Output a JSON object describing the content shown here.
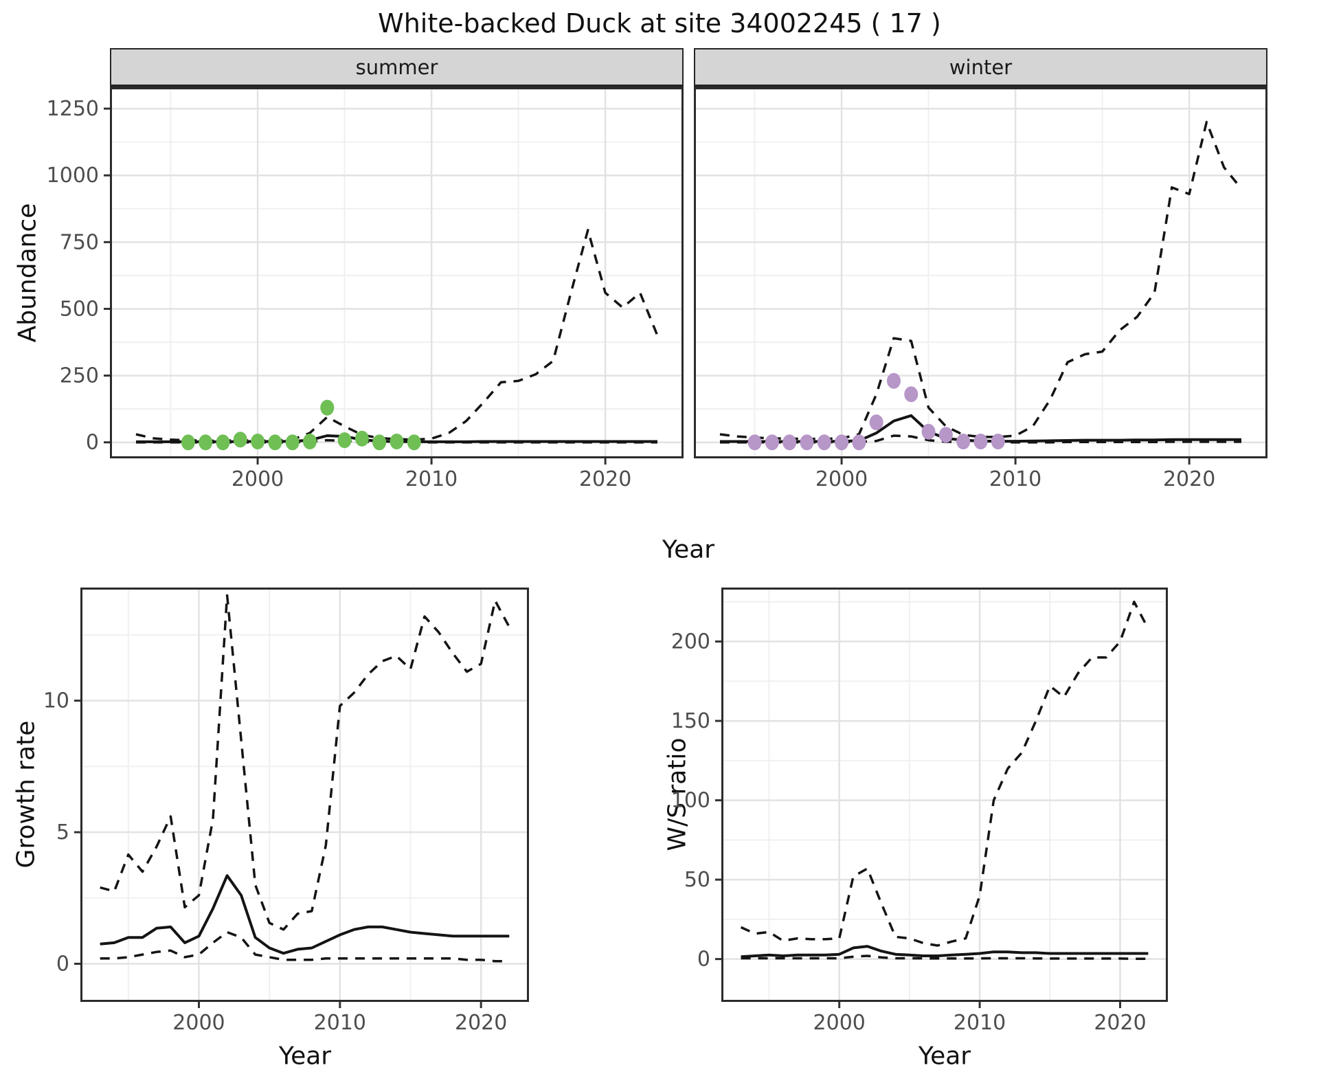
{
  "title": "White-backed Duck at site 34002245 ( 17 )",
  "facets": {
    "summer": "summer",
    "winter": "winter"
  },
  "axis_titles": {
    "abundance": "Abundance",
    "year_top": "Year",
    "growth_rate": "Growth rate",
    "year_bottom_left": "Year",
    "ws_ratio": "W/S ratio",
    "year_bottom_right": "Year"
  },
  "colors": {
    "summer_point": "#6FBF55",
    "winter_point": "#B796C8",
    "line": "#141414",
    "grid_major": "#E2E2E2",
    "grid_minor": "#F0F0F0",
    "panel_border": "#2B2B2B",
    "tick_mark": "#333333",
    "tick_label": "#4D4D4D",
    "strip_bg": "#D5D5D5",
    "text": "#111111"
  },
  "chart_data": [
    {
      "id": "abundance_summer",
      "type": "line",
      "facet": "summer",
      "xlabel": "Year",
      "ylabel": "Abundance",
      "x": [
        1993,
        1994,
        1995,
        1996,
        1997,
        1998,
        1999,
        2000,
        2001,
        2002,
        2003,
        2004,
        2005,
        2006,
        2007,
        2008,
        2009,
        2010,
        2011,
        2012,
        2013,
        2014,
        2015,
        2016,
        2017,
        2018,
        2019,
        2020,
        2021,
        2022,
        2023
      ],
      "series": [
        {
          "name": "dashed_lower",
          "style": "dashed",
          "values": [
            0,
            0,
            0,
            0,
            0,
            0,
            0,
            0,
            0,
            0,
            2,
            8,
            5,
            2,
            1,
            0,
            0,
            0,
            0,
            0,
            0,
            0,
            0,
            0,
            0,
            0,
            0,
            0,
            0,
            0,
            0
          ]
        },
        {
          "name": "dashed_upper",
          "style": "dashed",
          "values": [
            30,
            15,
            10,
            8,
            6,
            6,
            8,
            6,
            7,
            10,
            35,
            95,
            60,
            28,
            16,
            12,
            10,
            14,
            35,
            80,
            150,
            225,
            230,
            255,
            305,
            555,
            795,
            560,
            505,
            560,
            400
          ]
        },
        {
          "name": "solid_mean",
          "style": "solid",
          "values": [
            2,
            2,
            2,
            2,
            2,
            2,
            3,
            3,
            3,
            4,
            8,
            25,
            22,
            10,
            4,
            3,
            2,
            2,
            2,
            2,
            3,
            3,
            3,
            3,
            3,
            3,
            3,
            3,
            3,
            3,
            3
          ]
        }
      ],
      "points": {
        "name": "observed_counts_summer",
        "color_key": "summer_point",
        "data": [
          [
            1996,
            0
          ],
          [
            1997,
            0
          ],
          [
            1998,
            0
          ],
          [
            1999,
            10
          ],
          [
            2000,
            3
          ],
          [
            2001,
            0
          ],
          [
            2002,
            0
          ],
          [
            2003,
            3
          ],
          [
            2004,
            130
          ],
          [
            2005,
            8
          ],
          [
            2006,
            14
          ],
          [
            2007,
            0
          ],
          [
            2008,
            3
          ],
          [
            2009,
            0
          ]
        ]
      },
      "xlim": [
        1991.5,
        2024.5
      ],
      "ylim": [
        -60,
        1330
      ],
      "xticks": {
        "major": [
          2000,
          2010,
          2020
        ],
        "minor": [
          1995,
          2005,
          2015
        ],
        "labels": [
          "2000",
          "2010",
          "2020"
        ]
      },
      "yticks": {
        "major": [
          0,
          250,
          500,
          750,
          1000,
          1250
        ],
        "minor": [
          125,
          375,
          625,
          875,
          1125
        ],
        "labels": [
          "0",
          "250",
          "500",
          "750",
          "1000",
          "1250"
        ]
      },
      "y_axis": true
    },
    {
      "id": "abundance_winter",
      "type": "line",
      "facet": "winter",
      "xlabel": "Year",
      "ylabel": "Abundance",
      "x": [
        1993,
        1994,
        1995,
        1996,
        1997,
        1998,
        1999,
        2000,
        2001,
        2002,
        2003,
        2004,
        2005,
        2006,
        2007,
        2008,
        2009,
        2010,
        2011,
        2012,
        2013,
        2014,
        2015,
        2016,
        2017,
        2018,
        2019,
        2020,
        2021,
        2022,
        2023
      ],
      "series": [
        {
          "name": "dashed_lower",
          "style": "dashed",
          "values": [
            0,
            0,
            0,
            0,
            0,
            0,
            0,
            1,
            2,
            5,
            25,
            22,
            8,
            2,
            1,
            0,
            0,
            0,
            0,
            0,
            1,
            1,
            1,
            1,
            1,
            1,
            2,
            2,
            2,
            2,
            2
          ]
        },
        {
          "name": "dashed_upper",
          "style": "dashed",
          "values": [
            30,
            22,
            18,
            15,
            14,
            13,
            13,
            15,
            30,
            180,
            390,
            380,
            130,
            60,
            28,
            20,
            20,
            25,
            60,
            160,
            300,
            330,
            340,
            420,
            470,
            560,
            955,
            930,
            1200,
            1030,
            950
          ]
        },
        {
          "name": "solid_mean",
          "style": "solid",
          "values": [
            3,
            3,
            3,
            3,
            3,
            3,
            3,
            4,
            6,
            35,
            80,
            100,
            40,
            15,
            8,
            5,
            4,
            4,
            5,
            6,
            7,
            8,
            8,
            8,
            9,
            9,
            10,
            10,
            10,
            10,
            10
          ]
        }
      ],
      "points": {
        "name": "observed_counts_winter",
        "color_key": "winter_point",
        "data": [
          [
            1995,
            0
          ],
          [
            1996,
            0
          ],
          [
            1997,
            0
          ],
          [
            1998,
            0
          ],
          [
            1999,
            0
          ],
          [
            2000,
            0
          ],
          [
            2001,
            0
          ],
          [
            2002,
            75
          ],
          [
            2003,
            230
          ],
          [
            2004,
            180
          ],
          [
            2005,
            40
          ],
          [
            2006,
            28
          ],
          [
            2007,
            3
          ],
          [
            2008,
            3
          ],
          [
            2009,
            3
          ]
        ]
      },
      "xlim": [
        1991.5,
        2024.5
      ],
      "ylim": [
        -60,
        1330
      ],
      "xticks": {
        "major": [
          2000,
          2010,
          2020
        ],
        "minor": [
          1995,
          2005,
          2015
        ],
        "labels": [
          "2000",
          "2010",
          "2020"
        ]
      },
      "yticks": {
        "major": [
          0,
          250,
          500,
          750,
          1000,
          1250
        ],
        "minor": [
          125,
          375,
          625,
          875,
          1125
        ],
        "labels": [
          "0",
          "250",
          "500",
          "750",
          "1000",
          "1250"
        ]
      },
      "y_axis": false
    },
    {
      "id": "growth_rate",
      "type": "line",
      "facet": "",
      "xlabel": "Year",
      "ylabel": "Growth rate",
      "x": [
        1993,
        1994,
        1995,
        1996,
        1997,
        1998,
        1999,
        2000,
        2001,
        2002,
        2003,
        2004,
        2005,
        2006,
        2007,
        2008,
        2009,
        2010,
        2011,
        2012,
        2013,
        2014,
        2015,
        2016,
        2017,
        2018,
        2019,
        2020,
        2021,
        2022
      ],
      "series": [
        {
          "name": "dashed_lower",
          "style": "dashed",
          "values": [
            0.2,
            0.2,
            0.25,
            0.35,
            0.45,
            0.5,
            0.25,
            0.35,
            0.8,
            1.2,
            1.0,
            0.35,
            0.25,
            0.15,
            0.15,
            0.15,
            0.2,
            0.2,
            0.2,
            0.2,
            0.2,
            0.2,
            0.2,
            0.2,
            0.2,
            0.2,
            0.15,
            0.15,
            0.1,
            0.1
          ]
        },
        {
          "name": "dashed_upper",
          "style": "dashed",
          "values": [
            2.9,
            2.75,
            4.15,
            3.5,
            4.45,
            5.6,
            2.15,
            2.6,
            5.5,
            14.0,
            8.5,
            3.0,
            1.55,
            1.3,
            1.9,
            2.0,
            4.5,
            9.8,
            10.3,
            11.0,
            11.5,
            11.7,
            11.2,
            13.2,
            12.6,
            11.8,
            11.1,
            11.4,
            13.8,
            12.8
          ]
        },
        {
          "name": "solid_mean",
          "style": "solid",
          "values": [
            0.75,
            0.8,
            1.0,
            1.0,
            1.35,
            1.4,
            0.8,
            1.05,
            2.1,
            3.35,
            2.6,
            1.0,
            0.6,
            0.4,
            0.55,
            0.6,
            0.85,
            1.1,
            1.3,
            1.4,
            1.4,
            1.3,
            1.2,
            1.15,
            1.1,
            1.05,
            1.05,
            1.05,
            1.05,
            1.05
          ]
        }
      ],
      "points": null,
      "xlim": [
        1991.6,
        2023.4
      ],
      "ylim": [
        -1.45,
        14.3
      ],
      "xticks": {
        "major": [
          2000,
          2010,
          2020
        ],
        "minor": [
          1995,
          2005,
          2015
        ],
        "labels": [
          "2000",
          "2010",
          "2020"
        ]
      },
      "yticks": {
        "major": [
          0,
          5,
          10
        ],
        "minor": [
          2.5,
          7.5,
          12.5
        ],
        "labels": [
          "0",
          "5",
          "10"
        ]
      },
      "y_axis": true
    },
    {
      "id": "ws_ratio",
      "type": "line",
      "facet": "",
      "xlabel": "Year",
      "ylabel": "W/S ratio",
      "x": [
        1993,
        1994,
        1995,
        1996,
        1997,
        1998,
        1999,
        2000,
        2001,
        2002,
        2003,
        2004,
        2005,
        2006,
        2007,
        2008,
        2009,
        2010,
        2011,
        2012,
        2013,
        2014,
        2015,
        2016,
        2017,
        2018,
        2019,
        2020,
        2021,
        2022
      ],
      "series": [
        {
          "name": "dashed_lower",
          "style": "dashed",
          "values": [
            0.5,
            0.5,
            0.5,
            0.5,
            0.5,
            0.5,
            0.5,
            0.5,
            1.5,
            2,
            1,
            0.5,
            0.5,
            0.4,
            0.4,
            0.4,
            0.4,
            0.4,
            0.5,
            0.5,
            0.5,
            0.4,
            0.3,
            0.3,
            0.3,
            0.3,
            0.3,
            0.3,
            0.2,
            0.2
          ]
        },
        {
          "name": "dashed_upper",
          "style": "dashed",
          "values": [
            20,
            16,
            17,
            11.5,
            13,
            12.5,
            12.5,
            13,
            52,
            57,
            35,
            14,
            13,
            10,
            8.5,
            11,
            13,
            40,
            100,
            120,
            130,
            150,
            172,
            165,
            180,
            190,
            190,
            200,
            225,
            208
          ]
        },
        {
          "name": "solid_mean",
          "style": "solid",
          "values": [
            1.5,
            2,
            2.5,
            2,
            2.5,
            2.5,
            2.5,
            3,
            7,
            8,
            5,
            3,
            2.5,
            2,
            2,
            2.5,
            3,
            3.5,
            4.5,
            4.5,
            4,
            4,
            3.5,
            3.5,
            3.5,
            3.5,
            3.5,
            3.5,
            3.5,
            3.5
          ]
        }
      ],
      "points": null,
      "xlim": [
        1991.6,
        2023.4
      ],
      "ylim": [
        -27,
        234
      ],
      "xticks": {
        "major": [
          2000,
          2010,
          2020
        ],
        "minor": [
          1995,
          2005,
          2015
        ],
        "labels": [
          "2000",
          "2010",
          "2020"
        ]
      },
      "yticks": {
        "major": [
          0,
          50,
          100,
          150,
          200
        ],
        "minor": [
          25,
          75,
          125,
          175,
          225
        ],
        "labels": [
          "0",
          "50",
          "100",
          "150",
          "200"
        ]
      },
      "y_axis": true
    }
  ]
}
